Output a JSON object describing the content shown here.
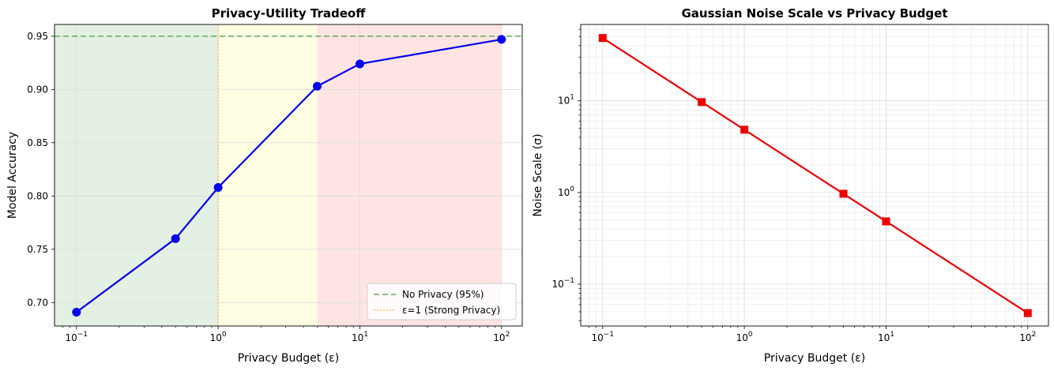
{
  "chart_data": [
    {
      "type": "line",
      "title": "Privacy-Utility Tradeoff",
      "xlabel": "Privacy Budget (ε)",
      "ylabel": "Model Accuracy",
      "xscale": "log",
      "xlim": [
        0.07,
        140
      ],
      "ylim": [
        0.678,
        0.961
      ],
      "x_ticks": [
        0.1,
        1,
        10,
        100
      ],
      "x_tick_labels": [
        {
          "base": "10",
          "exp": "−1"
        },
        {
          "base": "10",
          "exp": "0"
        },
        {
          "base": "10",
          "exp": "1"
        },
        {
          "base": "10",
          "exp": "2"
        }
      ],
      "y_ticks": [
        0.7,
        0.75,
        0.8,
        0.85,
        0.9,
        0.95
      ],
      "y_tick_labels": [
        "0.70",
        "0.75",
        "0.80",
        "0.85",
        "0.90",
        "0.95"
      ],
      "grid": true,
      "regions": [
        {
          "x_from": 0.07,
          "x_to": 1,
          "color": "#e4f0e4"
        },
        {
          "x_from": 1,
          "x_to": 5,
          "color": "#ffffe4"
        },
        {
          "x_from": 5,
          "x_to": 100,
          "color": "#ffe4e4"
        }
      ],
      "series": [
        {
          "x": [
            0.1,
            0.5,
            1,
            5,
            10,
            100
          ],
          "y": [
            0.691,
            0.76,
            0.808,
            0.903,
            0.924,
            0.947
          ],
          "color": "#0000ee",
          "marker": "circle"
        }
      ],
      "reference_lines": [
        {
          "orientation": "horizontal",
          "value": 0.95,
          "label": "No Privacy (95%)",
          "color": "#5aad5a",
          "style": "dashed"
        },
        {
          "orientation": "vertical",
          "value": 1,
          "label": "ε=1 (Strong Privacy)",
          "color": "#ffbe66",
          "style": "dotted"
        }
      ],
      "legend_position": "lower-right"
    },
    {
      "type": "line",
      "title": "Gaussian Noise Scale vs Privacy Budget",
      "xlabel": "Privacy Budget (ε)",
      "ylabel": "Noise Scale (σ)",
      "xscale": "log",
      "yscale": "log",
      "xlim": [
        0.07,
        140
      ],
      "ylim": [
        0.035,
        68
      ],
      "x_ticks": [
        0.1,
        1,
        10,
        100
      ],
      "x_tick_labels": [
        {
          "base": "10",
          "exp": "−1"
        },
        {
          "base": "10",
          "exp": "0"
        },
        {
          "base": "10",
          "exp": "1"
        },
        {
          "base": "10",
          "exp": "2"
        }
      ],
      "y_ticks": [
        0.1,
        1,
        10
      ],
      "y_tick_labels": [
        {
          "base": "10",
          "exp": "−1"
        },
        {
          "base": "10",
          "exp": "0"
        },
        {
          "base": "10",
          "exp": "1"
        }
      ],
      "grid": true,
      "minor_grid": true,
      "series": [
        {
          "x": [
            0.1,
            0.5,
            1,
            5,
            10,
            100
          ],
          "y": [
            48.4,
            9.69,
            4.84,
            0.969,
            0.484,
            0.0484
          ],
          "color": "#ee0000",
          "marker": "square"
        }
      ]
    }
  ]
}
